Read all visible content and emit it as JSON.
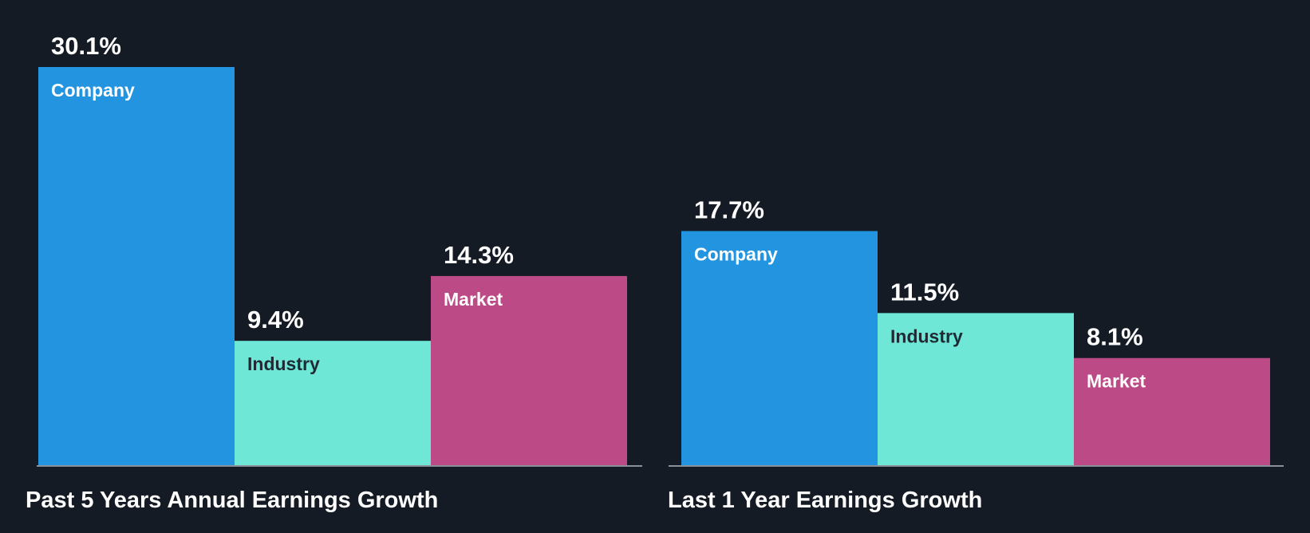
{
  "background": "#151b24",
  "chart_data": [
    {
      "type": "bar",
      "title": "Past 5 Years Annual Earnings Growth",
      "categories": [
        "Company",
        "Industry",
        "Market"
      ],
      "values": [
        30.1,
        9.4,
        14.3
      ],
      "value_labels": [
        "30.1%",
        "9.4%",
        "14.3%"
      ],
      "colors": [
        "#2394e0",
        "#6ee7d7",
        "#bc4a86"
      ],
      "label_colors": [
        "#ffffff",
        "#1f2a33",
        "#ffffff"
      ],
      "unit": "%",
      "ylim": [
        0,
        30.1
      ],
      "grid": false,
      "legend": "none"
    },
    {
      "type": "bar",
      "title": "Last 1 Year Earnings Growth",
      "categories": [
        "Company",
        "Industry",
        "Market"
      ],
      "values": [
        17.7,
        11.5,
        8.1
      ],
      "value_labels": [
        "17.7%",
        "11.5%",
        "8.1%"
      ],
      "colors": [
        "#2394e0",
        "#6ee7d7",
        "#bc4a86"
      ],
      "label_colors": [
        "#ffffff",
        "#1f2a33",
        "#ffffff"
      ],
      "unit": "%",
      "ylim": [
        0,
        30.1
      ],
      "grid": false,
      "legend": "none"
    }
  ]
}
